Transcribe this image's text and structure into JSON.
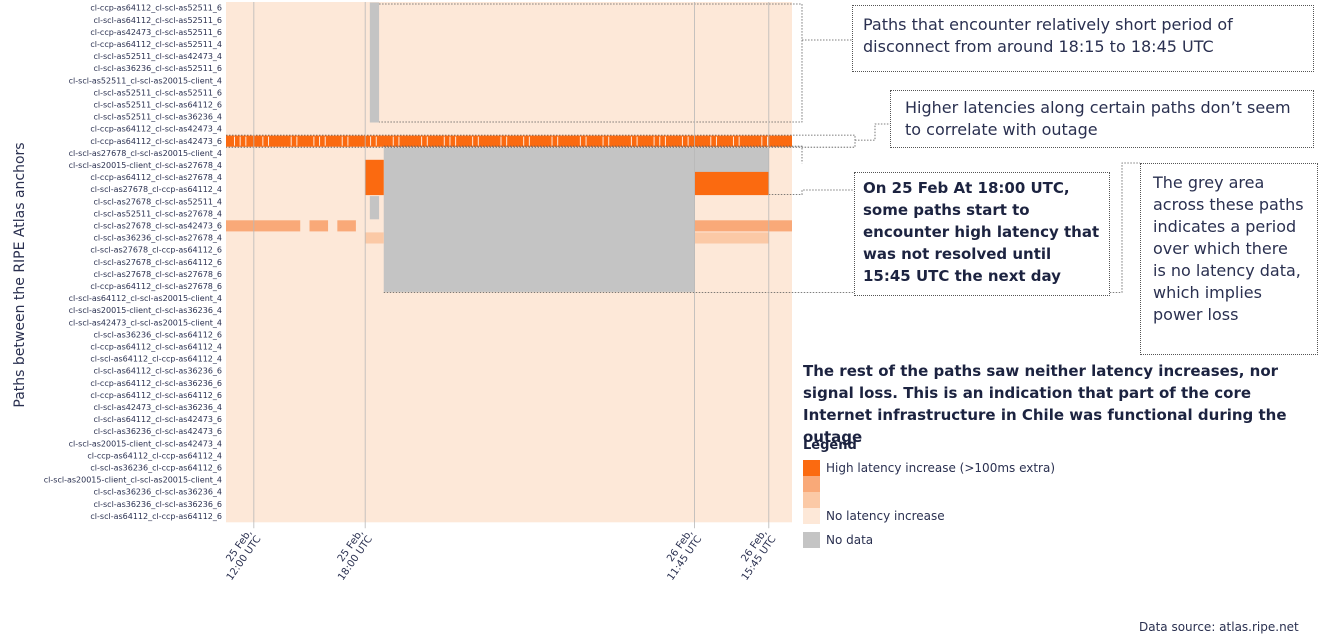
{
  "chart_data": {
    "type": "heatmap",
    "ylabel": "Paths between the RIPE Atlas anchors",
    "xlabel": "",
    "paths": [
      "cl-ccp-as64112_cl-scl-as52511_6",
      "cl-scl-as64112_cl-scl-as52511_6",
      "cl-ccp-as42473_cl-scl-as52511_6",
      "cl-ccp-as64112_cl-scl-as52511_4",
      "cl-scl-as52511_cl-scl-as42473_4",
      "cl-scl-as36236_cl-scl-as52511_6",
      "cl-scl-as52511_cl-scl-as20015-client_4",
      "cl-scl-as52511_cl-scl-as52511_6",
      "cl-scl-as52511_cl-scl-as64112_6",
      "cl-scl-as52511_cl-scl-as36236_4",
      "cl-ccp-as64112_cl-scl-as42473_4",
      "cl-ccp-as64112_cl-scl-as42473_6",
      "cl-scl-as27678_cl-scl-as20015-client_4",
      "cl-scl-as20015-client_cl-scl-as27678_4",
      "cl-ccp-as64112_cl-scl-as27678_4",
      "cl-scl-as27678_cl-ccp-as64112_4",
      "cl-scl-as27678_cl-scl-as52511_4",
      "cl-scl-as52511_cl-scl-as27678_4",
      "cl-scl-as27678_cl-scl-as42473_6",
      "cl-scl-as36236_cl-scl-as27678_4",
      "cl-scl-as27678_cl-ccp-as64112_6",
      "cl-scl-as27678_cl-scl-as64112_6",
      "cl-scl-as27678_cl-scl-as27678_6",
      "cl-ccp-as64112_cl-scl-as27678_6",
      "cl-scl-as64112_cl-scl-as20015-client_4",
      "cl-scl-as20015-client_cl-scl-as36236_4",
      "cl-scl-as42473_cl-scl-as20015-client_4",
      "cl-scl-as36236_cl-scl-as64112_6",
      "cl-ccp-as64112_cl-scl-as64112_4",
      "cl-scl-as64112_cl-ccp-as64112_4",
      "cl-scl-as64112_cl-scl-as36236_6",
      "cl-ccp-as64112_cl-scl-as36236_6",
      "cl-ccp-as64112_cl-scl-as64112_6",
      "cl-scl-as42473_cl-scl-as36236_4",
      "cl-scl-as64112_cl-scl-as42473_6",
      "cl-scl-as36236_cl-scl-as42473_6",
      "cl-scl-as20015-client_cl-scl-as42473_4",
      "cl-ccp-as64112_cl-ccp-as64112_4",
      "cl-scl-as36236_cl-ccp-as64112_6",
      "cl-scl-as20015-client_cl-scl-as20015-client_4",
      "cl-scl-as36236_cl-scl-as36236_4",
      "cl-scl-as36236_cl-scl-as36236_6",
      "cl-scl-as64112_cl-ccp-as64112_6"
    ],
    "x_range": [
      "25 Feb 10:30 UTC",
      "26 Feb 17:00 UTC"
    ],
    "x_ticks": [
      {
        "time": "25 Feb 12:00 UTC",
        "label": [
          "25 Feb,",
          "12:00 UTC"
        ]
      },
      {
        "time": "25 Feb 18:00 UTC",
        "label": [
          "25 Feb,",
          "18:00 UTC"
        ]
      },
      {
        "time": "26 Feb 11:45 UTC",
        "label": [
          "26 Feb,",
          "11:45 UTC"
        ]
      },
      {
        "time": "26 Feb 15:45 UTC",
        "label": [
          "26 Feb,",
          "15:45 UTC"
        ]
      }
    ],
    "background_level": "none",
    "blocks": [
      {
        "rows": [
          0,
          9
        ],
        "start": "25 Feb 18:15 UTC",
        "end": "25 Feb 18:45 UTC",
        "level": "nodata"
      },
      {
        "rows": [
          11,
          11
        ],
        "start": "25 Feb 10:30 UTC",
        "end": "26 Feb 17:00 UTC",
        "level": "high"
      },
      {
        "rows": [
          12,
          23
        ],
        "start": "25 Feb 19:00 UTC",
        "end": "26 Feb 11:45 UTC",
        "level": "nodata"
      },
      {
        "rows": [
          12,
          14
        ],
        "start": "26 Feb 11:45 UTC",
        "end": "26 Feb 15:45 UTC",
        "level": "nodata"
      },
      {
        "rows": [
          13,
          15
        ],
        "start": "25 Feb 18:00 UTC",
        "end": "25 Feb 19:00 UTC",
        "level": "high"
      },
      {
        "rows": [
          14,
          15
        ],
        "start": "26 Feb 11:45 UTC",
        "end": "26 Feb 15:45 UTC",
        "level": "high"
      },
      {
        "rows": [
          16,
          17
        ],
        "start": "25 Feb 18:15 UTC",
        "end": "25 Feb 18:45 UTC",
        "level": "nodata"
      },
      {
        "rows": [
          18,
          18
        ],
        "start": "25 Feb 10:30 UTC",
        "end": "25 Feb 14:30 UTC",
        "level": "medium"
      },
      {
        "rows": [
          18,
          18
        ],
        "start": "25 Feb 15:00 UTC",
        "end": "25 Feb 16:00 UTC",
        "level": "medium"
      },
      {
        "rows": [
          18,
          18
        ],
        "start": "25 Feb 16:30 UTC",
        "end": "25 Feb 17:30 UTC",
        "level": "medium"
      },
      {
        "rows": [
          18,
          18
        ],
        "start": "26 Feb 11:45 UTC",
        "end": "26 Feb 17:00 UTC",
        "level": "medium"
      },
      {
        "rows": [
          19,
          19
        ],
        "start": "25 Feb 18:00 UTC",
        "end": "25 Feb 19:00 UTC",
        "level": "low"
      },
      {
        "rows": [
          19,
          19
        ],
        "start": "26 Feb 11:45 UTC",
        "end": "26 Feb 15:45 UTC",
        "level": "low"
      }
    ],
    "colors": {
      "high": "#fb6a10",
      "medium": "#f9a978",
      "low": "#fbc9a6",
      "none": "#fde8d8",
      "nodata": "#c4c4c4"
    }
  },
  "annotations": {
    "disconnect": "Paths that encounter relatively short period of disconnect from around 18:15 to 18:45 UTC",
    "latency": "Higher latencies along certain paths don’t seem to correlate with outage",
    "high_latency": "On 25 Feb At 18:00 UTC, some paths start to encounter high latency that was not resolved until 15:45 UTC the next day",
    "grey_area": "The grey area across these paths indicates a period over which there is no latency data, which implies power loss",
    "rest": "The rest of the paths saw neither latency increases, nor signal loss. This is an indication that part of the core Internet infrastructure in Chile was functional during the outage"
  },
  "legend": {
    "title": "Legend",
    "items": [
      {
        "label": "High latency increase (>100ms extra)",
        "color": "#fb6a10"
      },
      {
        "label": "",
        "color": "#f9a978"
      },
      {
        "label": "",
        "color": "#fbc9a6"
      },
      {
        "label": "No latency increase",
        "color": "#fde8d8"
      },
      {
        "label": "No data",
        "color": "#c4c4c4"
      }
    ]
  },
  "source": "Data source: atlas.ripe.net"
}
